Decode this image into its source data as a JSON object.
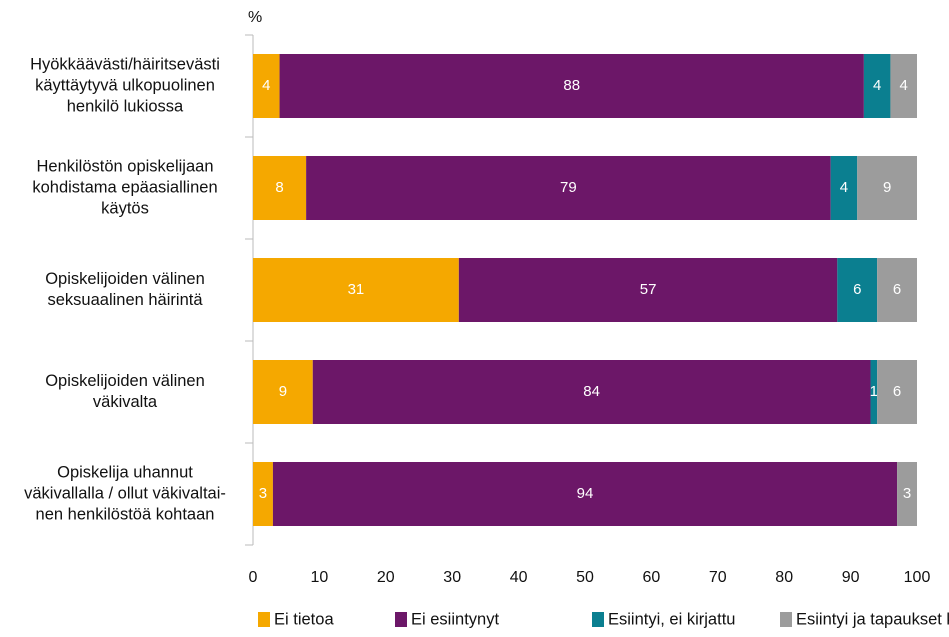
{
  "chart_data": {
    "type": "stacked-barh",
    "y_unit_label": "%",
    "categories": [
      "Hyökkäävästi/häiritsevästi\nkäyttäytyvä ulkopuolinen\nhenkilö lukiossa",
      "Henkilöstön opiskelijaan\nkohdistama epäasiallinen\nkäytös",
      "Opiskelijoiden välinen\nseksuaalinen häirintä",
      "Opiskelijoiden välinen\nväkivalta",
      "Opiskelija uhannut\nväkivallalla / ollut väkivaltai-\nnen henkilöstöä kohtaan"
    ],
    "series": [
      {
        "name": "Ei tietoa",
        "color": "#f5a800",
        "values": [
          4,
          8,
          31,
          9,
          3
        ]
      },
      {
        "name": "Ei esiintynyt",
        "color": "#6c1768",
        "values": [
          88,
          79,
          57,
          84,
          94
        ]
      },
      {
        "name": "Esiintyi, ei kirjattu",
        "color": "#0b7f90",
        "values": [
          4,
          4,
          6,
          1,
          null
        ]
      },
      {
        "name": "Esiintyi ja tapaukset kirjattiin",
        "color": "#9c9c9c",
        "values": [
          4,
          9,
          6,
          6,
          3
        ]
      }
    ],
    "xlim": [
      0,
      100
    ],
    "xticks": [
      0,
      10,
      20,
      30,
      40,
      50,
      60,
      70,
      80,
      90,
      100
    ],
    "legend": "bottom"
  }
}
